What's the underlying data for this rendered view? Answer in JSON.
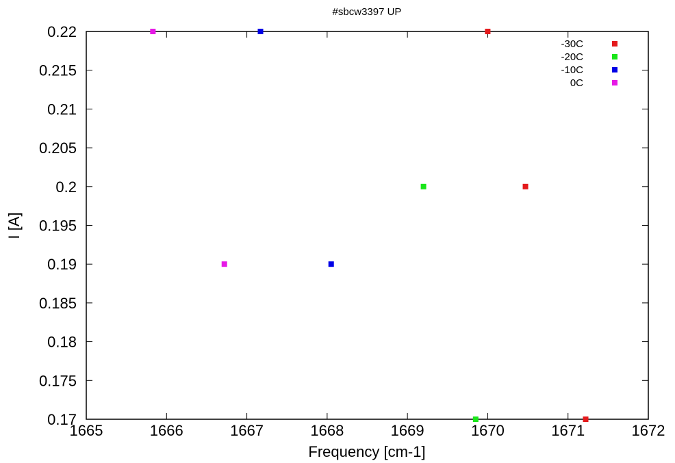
{
  "chart_data": {
    "type": "scatter",
    "title": "#sbcw3397 UP",
    "xlabel": "Frequency [cm-1]",
    "ylabel": "I [A]",
    "xlim": [
      1665,
      1672
    ],
    "ylim": [
      0.17,
      0.22
    ],
    "x_ticks": [
      "1665",
      "1666",
      "1667",
      "1668",
      "1669",
      "1670",
      "1671",
      "1672"
    ],
    "y_ticks": [
      "0.17",
      "0.175",
      "0.18",
      "0.185",
      "0.19",
      "0.195",
      "0.2",
      "0.205",
      "0.21",
      "0.215",
      "0.22"
    ],
    "grid": false,
    "legend_position": "top-right",
    "series": [
      {
        "name": "-30C",
        "color": "#e41a1c",
        "points": [
          [
            1670.0,
            0.22
          ],
          [
            1670.47,
            0.2
          ],
          [
            1671.22,
            0.17
          ]
        ]
      },
      {
        "name": "-20C",
        "color": "#19e619",
        "points": [
          [
            1669.2,
            0.2
          ],
          [
            1669.85,
            0.17
          ]
        ]
      },
      {
        "name": "-10C",
        "color": "#0000e6",
        "points": [
          [
            1667.17,
            0.22
          ],
          [
            1668.05,
            0.19
          ]
        ]
      },
      {
        "name": "0C",
        "color": "#e619e6",
        "points": [
          [
            1665.83,
            0.22
          ],
          [
            1666.72,
            0.19
          ]
        ]
      }
    ]
  }
}
